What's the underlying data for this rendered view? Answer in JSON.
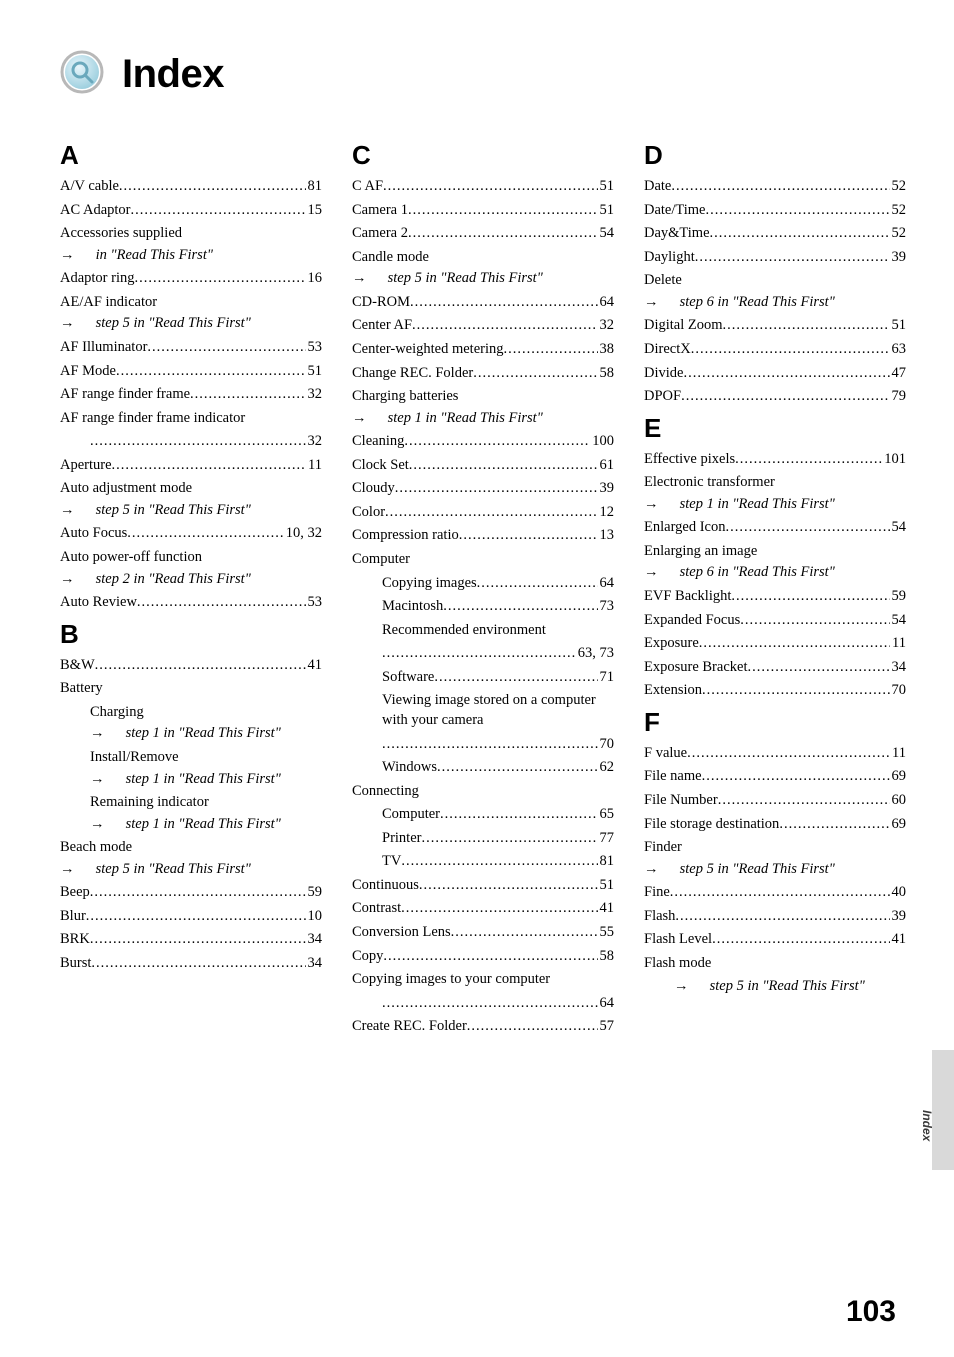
{
  "page": {
    "title": "Index",
    "number": "103",
    "side_tab": "Index",
    "icon": {
      "outer": "#b8b8b8",
      "inner_top": "#e8f5fb",
      "inner_bottom": "#9fd0df",
      "lens": "#6aa8bc"
    }
  },
  "columns": [
    {
      "sections": [
        {
          "letter": "A",
          "entries": [
            {
              "label": "A/V cable",
              "page": "81"
            },
            {
              "label": "AC Adaptor",
              "page": "15"
            },
            {
              "group": "Accessories supplied",
              "step": "in \"Read This First\""
            },
            {
              "label": "Adaptor ring",
              "page": "16"
            },
            {
              "group": "AE/AF indicator",
              "step": "step 5 in \"Read This First\""
            },
            {
              "label": "AF Illuminator",
              "page": "53"
            },
            {
              "label": "AF Mode",
              "page": "51"
            },
            {
              "label": "AF range finder frame",
              "page": "32"
            },
            {
              "group": "AF range finder frame indicator",
              "leaf_continuation": true,
              "page": "32"
            },
            {
              "label": "Aperture",
              "page": "11"
            },
            {
              "group": "Auto adjustment mode",
              "step": "step 5 in \"Read This First\""
            },
            {
              "label": "Auto Focus",
              "page": "10, 32"
            },
            {
              "group": "Auto power-off function",
              "step": "step 2 in \"Read This First\""
            },
            {
              "label": "Auto Review",
              "page": "53"
            }
          ]
        },
        {
          "letter": "B",
          "entries": [
            {
              "label": "B&W",
              "page": "41"
            },
            {
              "group": "Battery",
              "children": [
                {
                  "subgroup": "Charging",
                  "step": "step 1 in \"Read This First\""
                },
                {
                  "subgroup": "Install/Remove",
                  "step": "step 1 in \"Read This First\""
                },
                {
                  "subgroup": "Remaining indicator",
                  "step": "step 1 in \"Read This First\""
                }
              ]
            },
            {
              "group": "Beach mode",
              "step": "step 5 in \"Read This First\""
            },
            {
              "label": "Beep",
              "page": "59"
            },
            {
              "label": "Blur",
              "page": "10"
            },
            {
              "label": "BRK",
              "page": "34"
            },
            {
              "label": "Burst",
              "page": "34"
            }
          ]
        }
      ]
    },
    {
      "sections": [
        {
          "letter": "C",
          "entries": [
            {
              "label": "C AF",
              "page": "51"
            },
            {
              "label": "Camera 1",
              "page": "51"
            },
            {
              "label": "Camera 2",
              "page": "54"
            },
            {
              "group": "Candle mode",
              "step": "step 5 in \"Read This First\""
            },
            {
              "label": "CD-ROM",
              "page": "64"
            },
            {
              "label": "Center AF",
              "page": "32"
            },
            {
              "label": "Center-weighted metering",
              "page": "38"
            },
            {
              "label": "Change REC. Folder",
              "page": "58"
            },
            {
              "group": "Charging batteries",
              "step": "step 1 in \"Read This First\""
            },
            {
              "label": "Cleaning",
              "page": "100"
            },
            {
              "label": "Clock Set",
              "page": "61"
            },
            {
              "label": "Cloudy",
              "page": "39"
            },
            {
              "label": "Color",
              "page": "12"
            },
            {
              "label": "Compression ratio",
              "page": "13"
            },
            {
              "group": "Computer",
              "children": [
                {
                  "label": "Copying images",
                  "page": "64"
                },
                {
                  "label": "Macintosh",
                  "page": "73"
                },
                {
                  "subgroup": "Recommended environment",
                  "page": "63, 73",
                  "leaf": true
                },
                {
                  "label": "Software",
                  "page": "71"
                },
                {
                  "subgroup": "Viewing image stored on a computer with your camera",
                  "page": "70",
                  "leaf": true
                },
                {
                  "label": "Windows",
                  "page": "62"
                }
              ]
            },
            {
              "group": "Connecting",
              "children": [
                {
                  "label": "Computer",
                  "page": "65"
                },
                {
                  "label": "Printer",
                  "page": "77"
                },
                {
                  "label": "TV",
                  "page": "81"
                }
              ]
            },
            {
              "label": "Continuous",
              "page": "51"
            },
            {
              "label": "Contrast",
              "page": "41"
            },
            {
              "label": "Conversion Lens",
              "page": "55"
            },
            {
              "label": "Copy",
              "page": "58"
            },
            {
              "group": "Copying images to your computer",
              "page": "64",
              "leaf_continuation_indent": true
            },
            {
              "label": "Create REC. Folder",
              "page": "57"
            }
          ]
        }
      ]
    },
    {
      "sections": [
        {
          "letter": "D",
          "entries": [
            {
              "label": "Date",
              "page": "52"
            },
            {
              "label": "Date/Time",
              "page": "52"
            },
            {
              "label": "Day&Time",
              "page": "52"
            },
            {
              "label": "Daylight",
              "page": "39"
            },
            {
              "group": "Delete",
              "step": "step 6 in \"Read This First\""
            },
            {
              "label": "Digital Zoom",
              "page": "51"
            },
            {
              "label": "DirectX",
              "page": "63"
            },
            {
              "label": "Divide",
              "page": "47"
            },
            {
              "label": "DPOF",
              "page": "79"
            }
          ]
        },
        {
          "letter": "E",
          "entries": [
            {
              "label": "Effective pixels",
              "page": "101"
            },
            {
              "group": "Electronic transformer",
              "step": "step 1 in \"Read This First\""
            },
            {
              "label": "Enlarged Icon",
              "page": "54"
            },
            {
              "group": "Enlarging an image",
              "step": "step 6 in \"Read This First\""
            },
            {
              "label": "EVF Backlight",
              "page": "59"
            },
            {
              "label": "Expanded Focus",
              "page": "54"
            },
            {
              "label": "Exposure",
              "page": "11"
            },
            {
              "label": "Exposure Bracket",
              "page": "34"
            },
            {
              "label": "Extension",
              "page": "70"
            }
          ]
        },
        {
          "letter": "F",
          "entries": [
            {
              "label": "F value",
              "page": "11"
            },
            {
              "label": "File name",
              "page": "69"
            },
            {
              "label": "File Number",
              "page": "60"
            },
            {
              "label": "File storage destination",
              "page": "69"
            },
            {
              "group": "Finder",
              "step": "step 5 in \"Read This First\""
            },
            {
              "label": "Fine",
              "page": "40"
            },
            {
              "label": "Flash",
              "page": "39"
            },
            {
              "label": "Flash Level",
              "page": "41"
            },
            {
              "group": "Flash mode",
              "step_detached": true,
              "step": "step 5 in \"Read This First\""
            }
          ]
        }
      ]
    }
  ]
}
